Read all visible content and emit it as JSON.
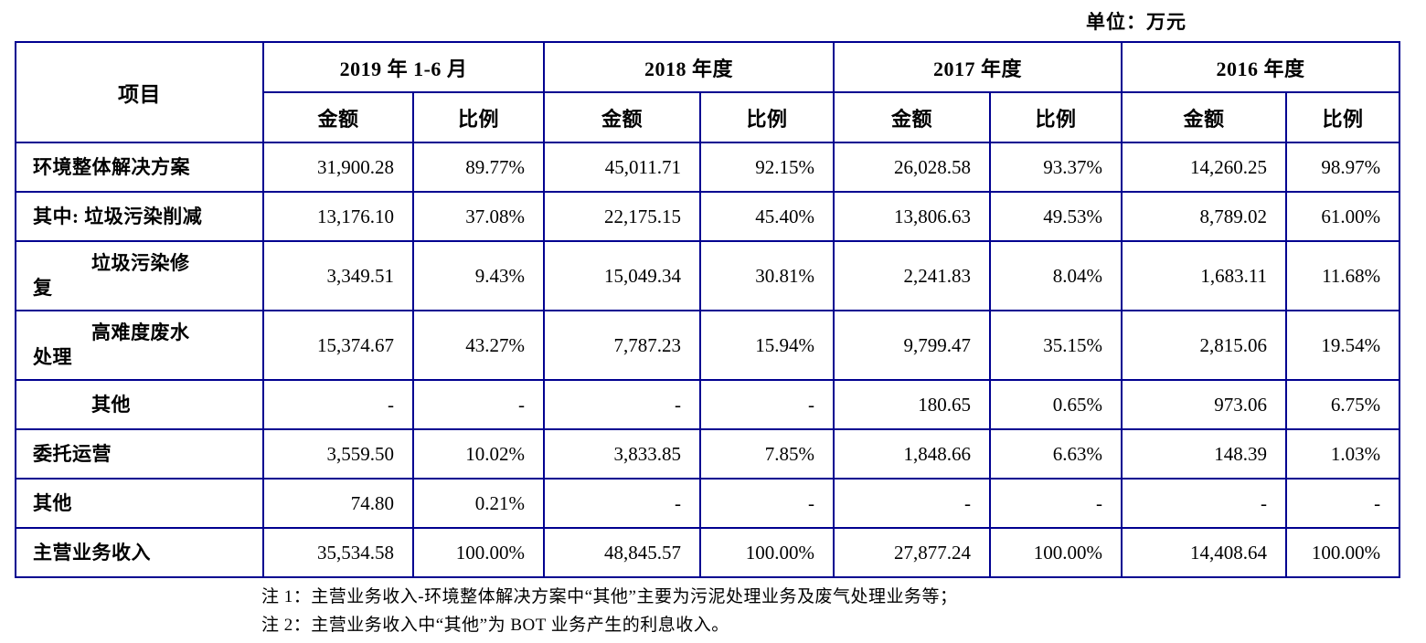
{
  "unit_label": "单位：万元",
  "table": {
    "item_header": "项目",
    "period_groups": [
      {
        "label": "2019 年 1-6 月",
        "sub": [
          "金额",
          "比例"
        ]
      },
      {
        "label": "2018 年度",
        "sub": [
          "金额",
          "比例"
        ]
      },
      {
        "label": "2017 年度",
        "sub": [
          "金额",
          "比例"
        ]
      },
      {
        "label": "2016 年度",
        "sub": [
          "金额",
          "比例"
        ]
      }
    ],
    "rows": [
      {
        "label": "环境整体解决方案",
        "level": 0,
        "values": [
          "31,900.28",
          "89.77%",
          "45,011.71",
          "92.15%",
          "26,028.58",
          "93.37%",
          "14,260.25",
          "98.97%"
        ]
      },
      {
        "label": "其中: 垃圾污染削减",
        "level": 0,
        "values": [
          "13,176.10",
          "37.08%",
          "22,175.15",
          "45.40%",
          "13,806.63",
          "49.53%",
          "8,789.02",
          "61.00%"
        ]
      },
      {
        "label": "垃圾污染修复",
        "level": 1,
        "values": [
          "3,349.51",
          "9.43%",
          "15,049.34",
          "30.81%",
          "2,241.83",
          "8.04%",
          "1,683.11",
          "11.68%"
        ]
      },
      {
        "label": "高难度废水处理",
        "level": 1,
        "values": [
          "15,374.67",
          "43.27%",
          "7,787.23",
          "15.94%",
          "9,799.47",
          "35.15%",
          "2,815.06",
          "19.54%"
        ]
      },
      {
        "label": "其他",
        "level": 1,
        "values": [
          "-",
          "-",
          "-",
          "-",
          "180.65",
          "0.65%",
          "973.06",
          "6.75%"
        ]
      },
      {
        "label": "委托运营",
        "level": 0,
        "values": [
          "3,559.50",
          "10.02%",
          "3,833.85",
          "7.85%",
          "1,848.66",
          "6.63%",
          "148.39",
          "1.03%"
        ]
      },
      {
        "label": "其他",
        "level": 0,
        "values": [
          "74.80",
          "0.21%",
          "-",
          "-",
          "-",
          "-",
          "-",
          "-"
        ]
      },
      {
        "label": "主营业务收入",
        "level": 0,
        "values": [
          "35,534.58",
          "100.00%",
          "48,845.57",
          "100.00%",
          "27,877.24",
          "100.00%",
          "14,408.64",
          "100.00%"
        ]
      }
    ],
    "notes": [
      "注 1：主营业务收入-环境整体解决方案中“其他”主要为污泥处理业务及废气处理业务等；",
      "注 2：主营业务收入中“其他”为 BOT 业务产生的利息收入。"
    ]
  }
}
